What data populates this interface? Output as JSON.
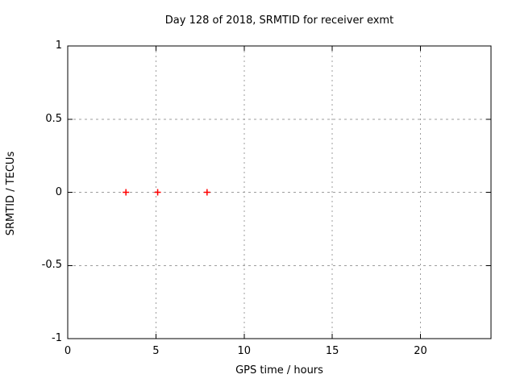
{
  "chart_data": {
    "type": "scatter",
    "title": "Day 128 of 2018, SRMTID for receiver exmt",
    "xlabel": "GPS time / hours",
    "ylabel": "SRMTID / TECUs",
    "xlim": [
      0,
      24
    ],
    "ylim": [
      -1,
      1
    ],
    "x_ticks": [
      0,
      5,
      10,
      15,
      20
    ],
    "x_tick_labels": [
      "0",
      "5",
      "10",
      "15",
      "20"
    ],
    "y_ticks": [
      -1,
      -0.5,
      0,
      0.5,
      1
    ],
    "y_tick_labels": [
      "-1",
      "-0.5",
      "0",
      "0.5",
      "1"
    ],
    "grid": true,
    "legend_position": "none",
    "series": [
      {
        "name": "SRMTID",
        "marker": "plus",
        "color": "#ff0000",
        "points": [
          {
            "x": 3.3,
            "y": 0
          },
          {
            "x": 5.1,
            "y": 0
          },
          {
            "x": 7.9,
            "y": 0
          }
        ]
      }
    ],
    "colors": {
      "background": "#ffffff",
      "border": "#000000",
      "grid": "#9e9e9e",
      "text": "#000000",
      "marker": "#ff0000"
    }
  }
}
